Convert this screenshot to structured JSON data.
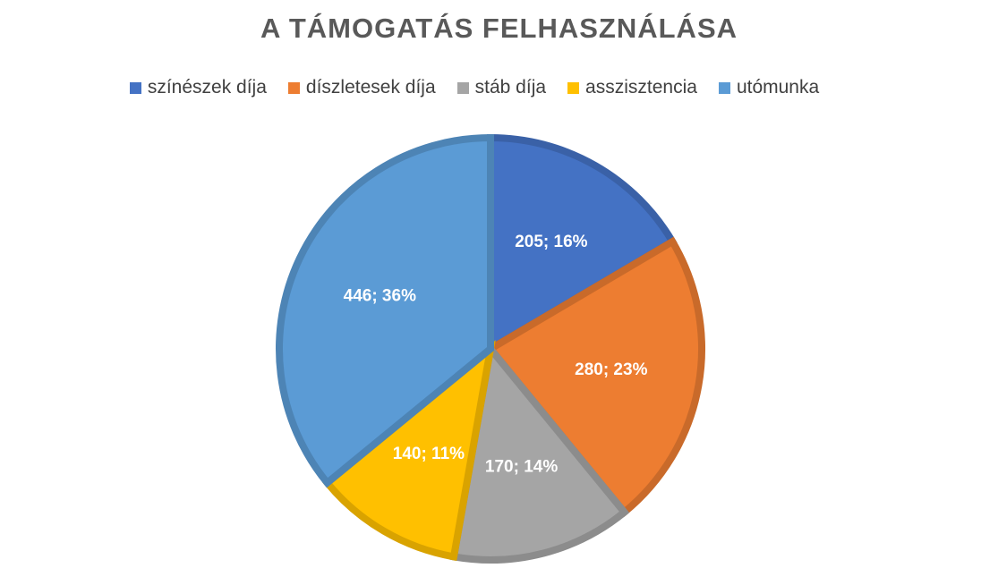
{
  "chart_data": {
    "type": "pie",
    "title": "A TÁMOGATÁS FELHASZNÁLÁSA",
    "legend_position": "top",
    "slices": [
      {
        "name": "színészek díja",
        "value": 205,
        "percent": "16%",
        "label": "205; 16%",
        "color": "#4472C4"
      },
      {
        "name": "díszletesek díja",
        "value": 280,
        "percent": "23%",
        "label": "280; 23%",
        "color": "#ED7D31"
      },
      {
        "name": "stáb díja",
        "value": 170,
        "percent": "14%",
        "label": "170; 14%",
        "color": "#A5A5A5"
      },
      {
        "name": "asszisztencia",
        "value": 140,
        "percent": "11%",
        "label": "140; 11%",
        "color": "#FFC000"
      },
      {
        "name": "utómunka",
        "value": 446,
        "percent": "36%",
        "label": "446; 36%",
        "color": "#5B9BD5"
      }
    ]
  }
}
